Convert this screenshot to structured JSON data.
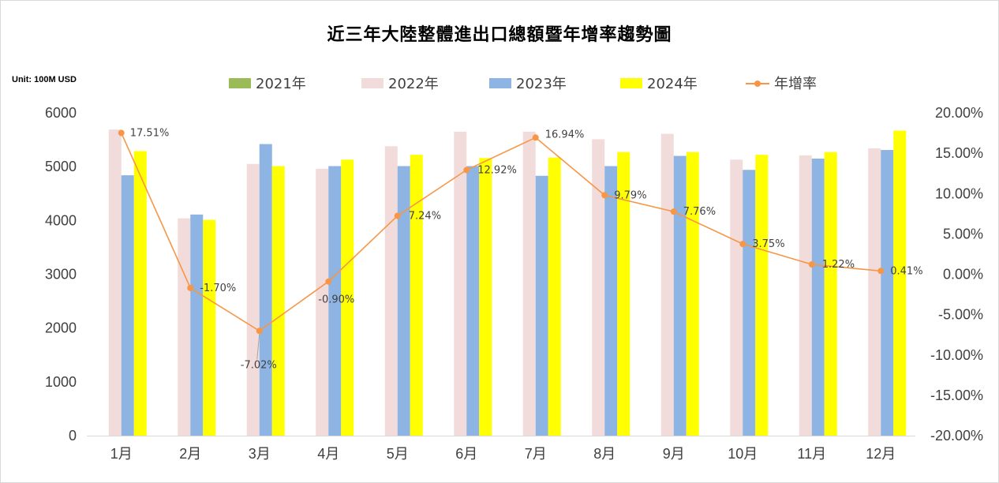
{
  "title": "近三年大陸整體進出口總額暨年增率趨勢圖",
  "unit": "Unit: 100M USD",
  "colors": {
    "s2021": "#9bbb59",
    "s2022": "#f2dcdb",
    "s2023": "#8eb4e3",
    "s2024": "#ffff00",
    "growth": "#f79646",
    "axis": "#d9d9d9",
    "text": "#404040"
  },
  "legend": [
    {
      "label": "2021年",
      "kind": "bar",
      "color": "#9bbb59"
    },
    {
      "label": "2022年",
      "kind": "bar",
      "color": "#f2dcdb"
    },
    {
      "label": "2023年",
      "kind": "bar",
      "color": "#8eb4e3"
    },
    {
      "label": "2024年",
      "kind": "bar",
      "color": "#ffff00"
    },
    {
      "label": "年增率",
      "kind": "line",
      "color": "#f79646"
    }
  ],
  "chart_data": {
    "type": "bar",
    "categories": [
      "1月",
      "2月",
      "3月",
      "4月",
      "5月",
      "6月",
      "7月",
      "8月",
      "9月",
      "10月",
      "11月",
      "12月"
    ],
    "series": [
      {
        "name": "2021年",
        "axis": "left",
        "values": [
          0,
          0,
          0,
          0,
          0,
          0,
          0,
          0,
          0,
          0,
          0,
          0
        ]
      },
      {
        "name": "2022年",
        "axis": "left",
        "values": [
          5690,
          4040,
          5050,
          4960,
          5380,
          5650,
          5650,
          5510,
          5610,
          5130,
          5210,
          5340
        ]
      },
      {
        "name": "2023年",
        "axis": "left",
        "values": [
          4840,
          4110,
          5420,
          5010,
          5010,
          5010,
          4830,
          5010,
          5200,
          4940,
          5150,
          5310
        ]
      },
      {
        "name": "2024年",
        "axis": "left",
        "values": [
          5290,
          4010,
          5010,
          5130,
          5220,
          5160,
          5170,
          5270,
          5270,
          5220,
          5270,
          5670
        ]
      },
      {
        "name": "年增率",
        "type": "line",
        "axis": "right",
        "values": [
          17.51,
          -1.7,
          -7.02,
          -0.9,
          7.24,
          12.92,
          16.94,
          9.79,
          7.76,
          3.75,
          1.22,
          0.41
        ],
        "labels": [
          "17.51%",
          "-1.70%",
          "-7.02%",
          "-0.90%",
          "7.24%",
          "12.92%",
          "16.94%",
          "9.79%",
          "7.76%",
          "3.75%",
          "1.22%",
          "0.41%"
        ]
      }
    ],
    "ylim": [
      0,
      6000
    ],
    "yticks": [
      "0",
      "1000",
      "2000",
      "3000",
      "4000",
      "5000",
      "6000"
    ],
    "y2lim": [
      -20,
      20
    ],
    "y2ticks": [
      "-20.00%",
      "-15.00%",
      "-10.00%",
      "-5.00%",
      "0.00%",
      "5.00%",
      "10.00%",
      "15.00%",
      "20.00%"
    ],
    "grid": false,
    "legend_position": "top"
  }
}
